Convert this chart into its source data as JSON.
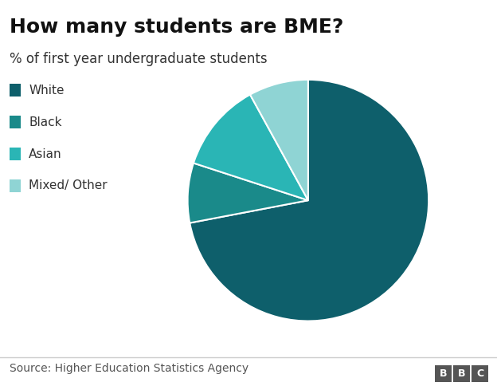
{
  "title": "How many students are BME?",
  "subtitle": "% of first year undergraduate students",
  "source": "Source: Higher Education Statistics Agency",
  "labels": [
    "White",
    "Black",
    "Asian",
    "Mixed/ Other"
  ],
  "values": [
    72,
    8,
    12,
    8
  ],
  "colors": [
    "#0e5f6b",
    "#1a8a8a",
    "#2ab5b5",
    "#8fd4d4"
  ],
  "wedge_edge_color": "white",
  "wedge_edge_width": 1.5,
  "background_color": "#ffffff",
  "title_fontsize": 18,
  "subtitle_fontsize": 12,
  "legend_fontsize": 11,
  "source_fontsize": 10,
  "startangle": 90
}
